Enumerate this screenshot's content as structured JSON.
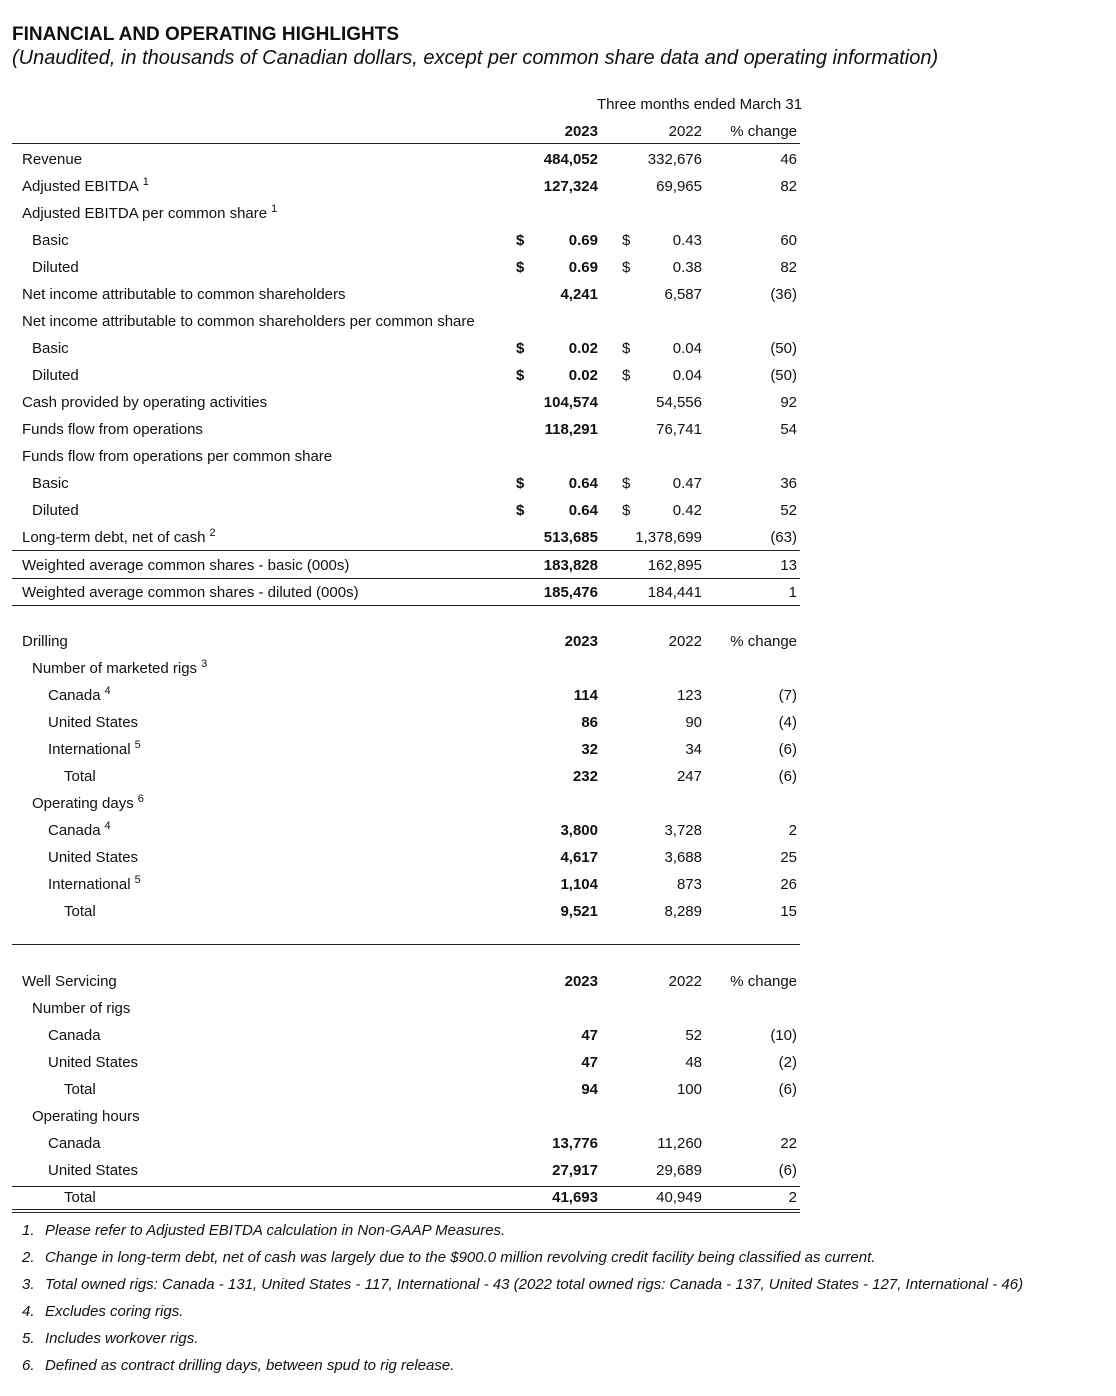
{
  "header": {
    "title": "FINANCIAL AND OPERATING HIGHLIGHTS",
    "subtitle": "(Unaudited, in thousands of Canadian dollars, except per common share data and operating information)"
  },
  "sections": [
    {
      "period": "Three months ended March 31",
      "columns": [
        "2023",
        "2022",
        "% change"
      ],
      "rows": [
        {
          "label": "Revenue",
          "value_2023": "484,052",
          "value_2022": "332,676",
          "change": "46"
        },
        {
          "label": "Adjusted EBITDA",
          "note": "1",
          "value_2023": "127,324",
          "value_2022": "69,965",
          "change": "82"
        },
        {
          "label": "Adjusted EBITDA per common share",
          "note": "1"
        },
        {
          "label": "Basic",
          "currency_2023": "$",
          "value_2023": "0.69",
          "currency_2022": "$",
          "value_2022": "0.43",
          "change": "60"
        },
        {
          "label": "Diluted",
          "currency_2023": "$",
          "value_2023": "0.69",
          "currency_2022": "$",
          "value_2022": "0.38",
          "change": "82"
        },
        {
          "label": "Net income attributable to common shareholders",
          "value_2023": "4,241",
          "value_2022": "6,587",
          "change": "(36)"
        },
        {
          "label": "Net income attributable to common shareholders per common share"
        },
        {
          "label": "Basic",
          "currency_2023": "$",
          "value_2023": "0.02",
          "currency_2022": "$",
          "value_2022": "0.04",
          "change": "(50)"
        },
        {
          "label": "Diluted",
          "currency_2023": "$",
          "value_2023": "0.02",
          "currency_2022": "$",
          "value_2022": "0.04",
          "change": "(50)"
        },
        {
          "label": "Cash provided by operating activities",
          "value_2023": "104,574",
          "value_2022": "54,556",
          "change": "92"
        },
        {
          "label": "Funds flow from operations",
          "value_2023": "118,291",
          "value_2022": "76,741",
          "change": "54"
        },
        {
          "label": "Funds flow from operations per common share"
        },
        {
          "label": "Basic",
          "currency_2023": "$",
          "value_2023": "0.64",
          "currency_2022": "$",
          "value_2022": "0.47",
          "change": "36"
        },
        {
          "label": "Diluted",
          "currency_2023": "$",
          "value_2023": "0.64",
          "currency_2022": "$",
          "value_2022": "0.42",
          "change": "52"
        },
        {
          "label": "Long-term debt, net of cash",
          "note": "2",
          "value_2023": "513,685",
          "value_2022": "1,378,699",
          "change": "(63)"
        },
        {
          "label": "Weighted average common shares - basic (000s)",
          "value_2023": "183,828",
          "value_2022": "162,895",
          "change": "13"
        },
        {
          "label": "Weighted average common shares - diluted (000s)",
          "value_2023": "185,476",
          "value_2022": "184,441",
          "change": "1"
        }
      ]
    },
    {
      "title": "Drilling",
      "columns": [
        "2023",
        "2022",
        "% change"
      ],
      "rows": [
        {
          "label": "Number of marketed rigs",
          "note": "3"
        },
        {
          "label": "Canada",
          "note": "4",
          "value_2023": "114",
          "value_2022": "123",
          "change": "(7)"
        },
        {
          "label": "United States",
          "value_2023": "86",
          "value_2022": "90",
          "change": "(4)"
        },
        {
          "label": "International",
          "note": "5",
          "value_2023": "32",
          "value_2022": "34",
          "change": "(6)"
        },
        {
          "label": "Total",
          "value_2023": "232",
          "value_2022": "247",
          "change": "(6)"
        },
        {
          "label": "Operating days",
          "note": "6"
        },
        {
          "label": "Canada",
          "note": "4",
          "value_2023": "3,800",
          "value_2022": "3,728",
          "change": "2"
        },
        {
          "label": "United States",
          "value_2023": "4,617",
          "value_2022": "3,688",
          "change": "25"
        },
        {
          "label": "International",
          "note": "5",
          "value_2023": "1,104",
          "value_2022": "873",
          "change": "26"
        },
        {
          "label": "Total",
          "value_2023": "9,521",
          "value_2022": "8,289",
          "change": "15"
        }
      ]
    },
    {
      "title": "Well Servicing",
      "columns": [
        "2023",
        "2022",
        "% change"
      ],
      "rows": [
        {
          "label": "Number of rigs"
        },
        {
          "label": "Canada",
          "value_2023": "47",
          "value_2022": "52",
          "change": "(10)"
        },
        {
          "label": "United States",
          "value_2023": "47",
          "value_2022": "48",
          "change": "(2)"
        },
        {
          "label": "Total",
          "value_2023": "94",
          "value_2022": "100",
          "change": "(6)"
        },
        {
          "label": "Operating hours"
        },
        {
          "label": "Canada",
          "value_2023": "13,776",
          "value_2022": "11,260",
          "change": "22"
        },
        {
          "label": "United States",
          "value_2023": "27,917",
          "value_2022": "29,689",
          "change": "(6)"
        },
        {
          "label": "Total",
          "value_2023": "41,693",
          "value_2022": "40,949",
          "change": "2"
        }
      ]
    }
  ],
  "footnotes": [
    {
      "number": "1.",
      "text": "Please refer to Adjusted EBITDA calculation in Non-GAAP Measures."
    },
    {
      "number": "2.",
      "text": "Change in long-term debt, net of cash was largely due to the $900.0 million revolving credit facility being classified as current."
    },
    {
      "number": "3.",
      "text": "Total owned rigs: Canada - 131, United States - 117, International - 43 (2022 total owned rigs: Canada - 137, United States - 127, International - 46)"
    },
    {
      "number": "4.",
      "text": "Excludes coring rigs."
    },
    {
      "number": "5.",
      "text": "Includes workover rigs."
    },
    {
      "number": "6.",
      "text": "Defined as contract drilling days, between spud to rig release."
    }
  ]
}
